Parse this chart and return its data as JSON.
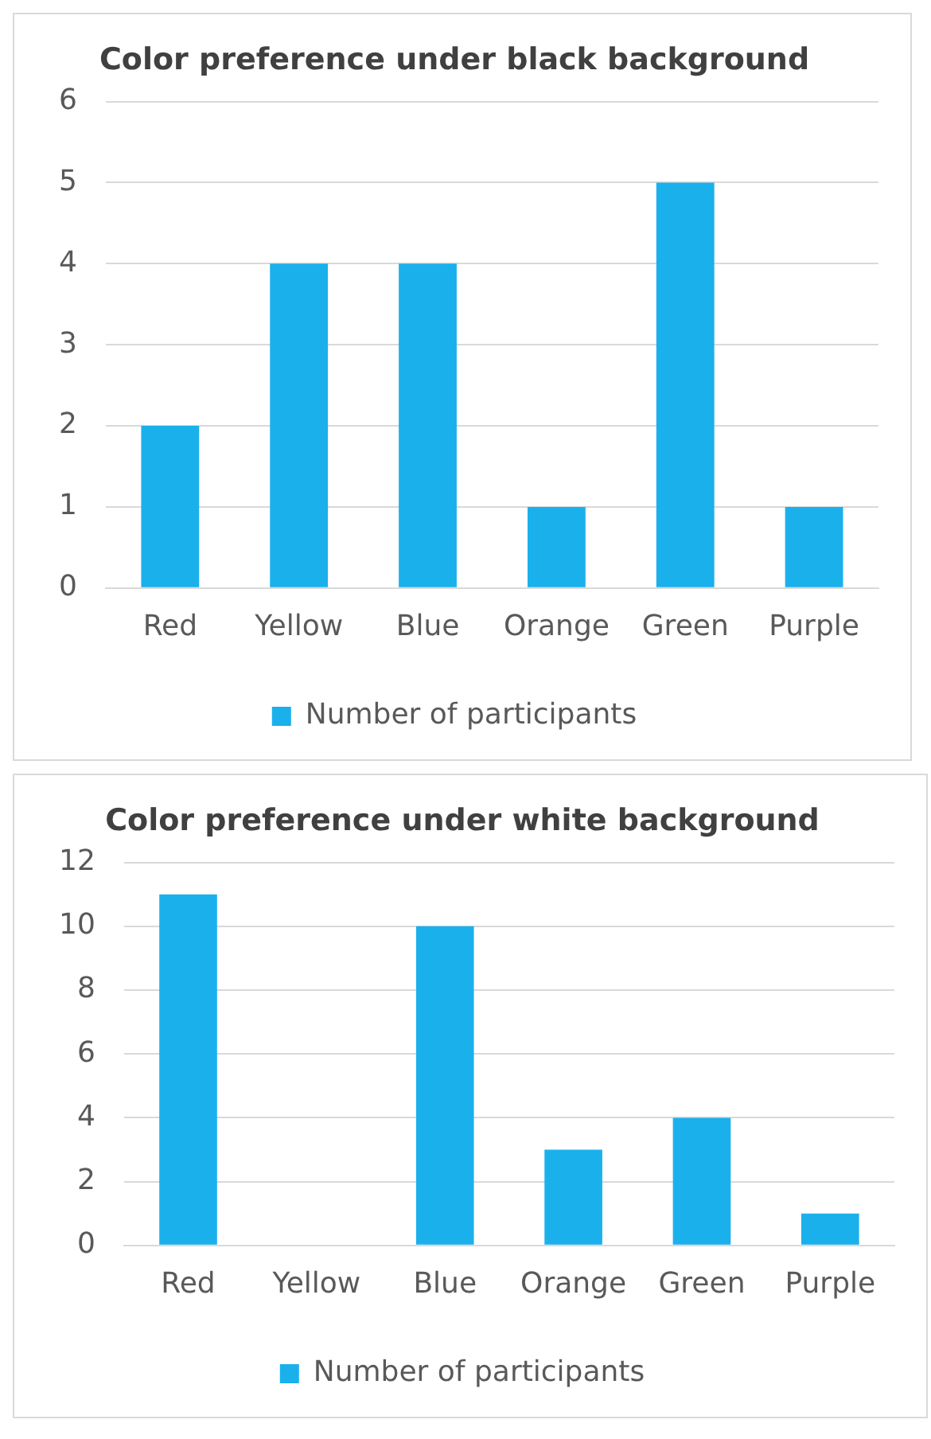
{
  "chart_data": [
    {
      "type": "bar",
      "title": "Color preference under black background",
      "categories": [
        "Red",
        "Yellow",
        "Blue",
        "Orange",
        "Green",
        "Purple"
      ],
      "series": [
        {
          "name": "Number of participants",
          "color": "#1ab0ec",
          "values": [
            2,
            4,
            4,
            1,
            5,
            1
          ]
        }
      ],
      "ylim": [
        0,
        6
      ],
      "yticks": [
        0,
        1,
        2,
        3,
        4,
        5,
        6
      ],
      "grid": "y",
      "legend": "bottom"
    },
    {
      "type": "bar",
      "title": "Color preference under white background",
      "categories": [
        "Red",
        "Yellow",
        "Blue",
        "Orange",
        "Green",
        "Purple"
      ],
      "series": [
        {
          "name": "Number of participants",
          "color": "#1ab0ec",
          "values": [
            11,
            0,
            10,
            3,
            4,
            1
          ]
        }
      ],
      "ylim": [
        0,
        12
      ],
      "yticks": [
        0,
        2,
        4,
        6,
        8,
        10,
        12
      ],
      "grid": "y",
      "legend": "bottom"
    }
  ]
}
